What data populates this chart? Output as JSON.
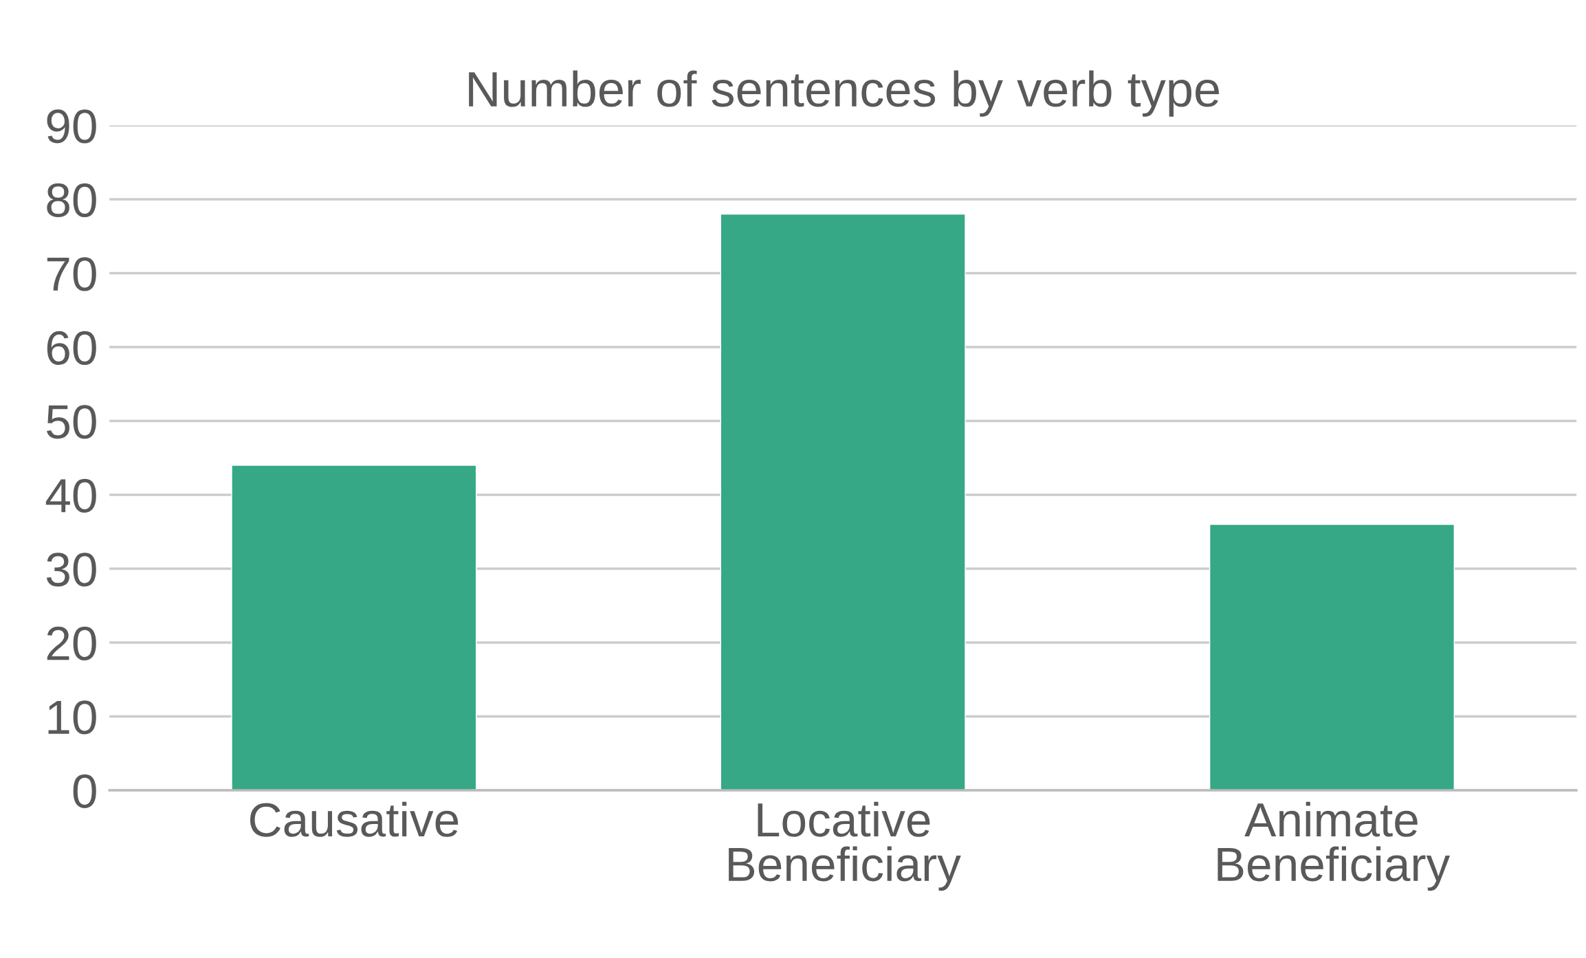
{
  "chart_data": {
    "type": "bar",
    "title": "Number of sentences by verb type",
    "categories": [
      "Causative",
      "Locative Beneficiary",
      "Animate Beneficiary"
    ],
    "values": [
      44,
      78,
      36
    ],
    "color": "#36a886",
    "ylim": [
      0,
      90
    ],
    "yticks": [
      0,
      10,
      20,
      30,
      40,
      50,
      60,
      70,
      80,
      90
    ],
    "grid": "y"
  }
}
